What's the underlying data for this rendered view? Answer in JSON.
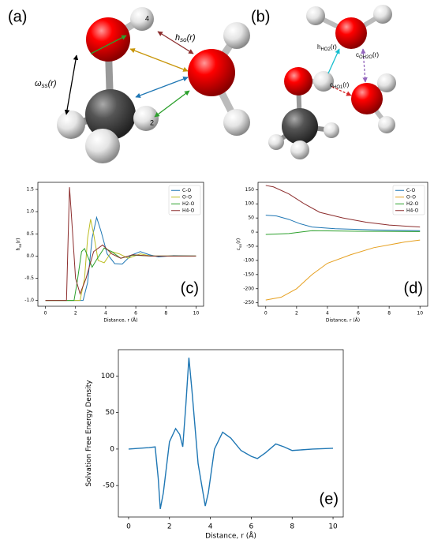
{
  "diagram_a": {
    "panel": "(a)",
    "atom_labels": [
      "4",
      "2"
    ],
    "h_so": {
      "base": "h",
      "sub": "so",
      "tail": "(r)"
    },
    "omega_ss": {
      "base": "ω",
      "sub": "ss",
      "tail": "(r)"
    }
  },
  "diagram_b": {
    "panel": "(b)",
    "h_ho2": {
      "base": "h",
      "sub": "HO2",
      "tail": "(r)"
    },
    "c_oh2": {
      "base": "c",
      "sub": "OH2O",
      "tail": "(r)"
    },
    "c_ho1": {
      "base": "c",
      "sub": "HO1",
      "tail": "(r)"
    }
  },
  "chart_data": [
    {
      "type": "line",
      "annotation": "(c)",
      "xlabel": "Distance, r (Å)",
      "ylabel": {
        "base": "h",
        "sub": "so",
        "tail": "(r)"
      },
      "xlim": [
        -0.5,
        10.5
      ],
      "ylim": [
        -1.13,
        1.66
      ],
      "xticks": [
        0,
        2,
        4,
        6,
        8,
        10
      ],
      "yticks": [
        {
          "value": -1,
          "label": "-1.0"
        },
        -0.5,
        {
          "value": 0,
          "label": "0.0"
        },
        0.5,
        {
          "value": 1,
          "label": "1.0"
        },
        1.5
      ],
      "legend": "upper right",
      "series": [
        {
          "name": "C-O",
          "color": "#1f77b4",
          "x": [
            0,
            2.5,
            2.8,
            3.1,
            3.4,
            3.7,
            4.1,
            4.6,
            5.1,
            5.7,
            6.3,
            6.9,
            7.5,
            8.5,
            10
          ],
          "values": [
            -1,
            -1,
            -0.6,
            0.4,
            0.87,
            0.55,
            0.05,
            -0.17,
            -0.18,
            0.02,
            0.1,
            0.03,
            -0.02,
            0.01,
            0
          ]
        },
        {
          "name": "O-O",
          "color": "#bcbd22",
          "x": [
            0,
            2.3,
            2.6,
            2.8,
            3.0,
            3.2,
            3.5,
            3.9,
            4.4,
            4.9,
            5.5,
            6.3,
            7,
            10
          ],
          "values": [
            -1,
            -1,
            -0.5,
            0.4,
            0.83,
            0.5,
            -0.1,
            -0.15,
            0.1,
            0.05,
            -0.05,
            0.05,
            0,
            0
          ]
        },
        {
          "name": "H2-O",
          "color": "#2ca02c",
          "x": [
            0,
            1.9,
            2.1,
            2.4,
            2.6,
            2.8,
            3.1,
            3.4,
            3.9,
            4.4,
            5.0,
            5.8,
            7,
            10
          ],
          "values": [
            -1,
            -1,
            -0.6,
            0.1,
            0.17,
            0,
            -0.25,
            -0.08,
            0.18,
            0.1,
            -0.05,
            0.02,
            0,
            0
          ]
        },
        {
          "name": "H4-O",
          "color": "#8c2d2d",
          "x": [
            0,
            1.4,
            1.5,
            1.6,
            1.75,
            2.0,
            2.3,
            2.7,
            3.2,
            3.8,
            4.4,
            5.0,
            5.8,
            7,
            10
          ],
          "values": [
            -1,
            -1,
            0.3,
            1.55,
            0.8,
            -0.5,
            -0.85,
            -0.5,
            0.1,
            0.25,
            0.05,
            -0.05,
            0.03,
            0,
            0
          ]
        }
      ]
    },
    {
      "type": "line",
      "annotation": "(d)",
      "xlabel": "Distance, r (Å)",
      "ylabel": {
        "base": "c",
        "sub": "so",
        "tail": "(r)"
      },
      "xlim": [
        -0.5,
        10.5
      ],
      "ylim": [
        -262,
        176
      ],
      "xticks": [
        0,
        2,
        4,
        6,
        8,
        10
      ],
      "yticks": [
        -250,
        -200,
        -150,
        -100,
        -50,
        0,
        50,
        100,
        150
      ],
      "legend": "upper right",
      "series": [
        {
          "name": "C-O",
          "color": "#1f77b4",
          "x": [
            0,
            0.7,
            1.5,
            2.2,
            3,
            4.5,
            7,
            10
          ],
          "values": [
            60,
            57,
            45,
            30,
            18,
            12,
            8,
            5
          ]
        },
        {
          "name": "O-O",
          "color": "#e6a020",
          "x": [
            0,
            1,
            2,
            3,
            4,
            5.5,
            7,
            9,
            10
          ],
          "values": [
            -240,
            -230,
            -200,
            -150,
            -110,
            -80,
            -55,
            -35,
            -28
          ]
        },
        {
          "name": "H2-O",
          "color": "#2ca02c",
          "x": [
            0,
            1.5,
            3,
            6,
            10
          ],
          "values": [
            -8,
            -5,
            5,
            3,
            2
          ]
        },
        {
          "name": "H4-O",
          "color": "#8c2d2d",
          "x": [
            0,
            0.5,
            1.5,
            2.5,
            3.5,
            5,
            6.5,
            8,
            10
          ],
          "values": [
            165,
            160,
            135,
            100,
            70,
            50,
            35,
            25,
            18
          ]
        }
      ]
    },
    {
      "type": "line",
      "annotation": "(e)",
      "xlabel": "Distance, r (Å)",
      "ylabel": {
        "base": "Solvation Free Energy Density",
        "sub": "",
        "tail": ""
      },
      "xlim": [
        -0.5,
        10.5
      ],
      "ylim": [
        -93,
        136
      ],
      "xticks": [
        0,
        2,
        4,
        6,
        8,
        10
      ],
      "yticks": [
        -50,
        0,
        50,
        100
      ],
      "series": [
        {
          "color": "#1f77b4",
          "x": [
            0,
            1,
            1.3,
            1.45,
            1.55,
            1.7,
            2.0,
            2.3,
            2.5,
            2.65,
            2.8,
            2.95,
            3.1,
            3.4,
            3.75,
            3.9,
            4.2,
            4.6,
            5.0,
            5.5,
            6.0,
            6.3,
            6.7,
            7.2,
            7.6,
            8.0,
            9,
            10
          ],
          "values": [
            0,
            2,
            3,
            -40,
            -82,
            -60,
            10,
            28,
            20,
            3,
            60,
            125,
            80,
            -20,
            -78,
            -60,
            0,
            23,
            15,
            -2,
            -10,
            -13,
            -5,
            7,
            3,
            -2,
            0,
            1
          ]
        }
      ]
    }
  ]
}
